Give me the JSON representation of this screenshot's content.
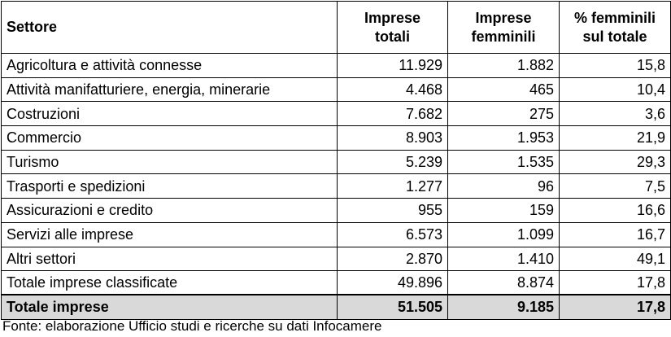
{
  "table": {
    "headers": {
      "sector": "Settore",
      "total": [
        "Imprese",
        "totali"
      ],
      "female": [
        "Imprese",
        "femminili"
      ],
      "percent": [
        "% femminili",
        "sul totale"
      ]
    },
    "rows": [
      {
        "sector": "Agricoltura e attività connesse",
        "total": "11.929",
        "female": "1.882",
        "percent": "15,8"
      },
      {
        "sector": "Attività manifatturiere, energia, minerarie",
        "total": "4.468",
        "female": "465",
        "percent": "10,4"
      },
      {
        "sector": "Costruzioni",
        "total": "7.682",
        "female": "275",
        "percent": "3,6"
      },
      {
        "sector": "Commercio",
        "total": "8.903",
        "female": "1.953",
        "percent": "21,9"
      },
      {
        "sector": "Turismo",
        "total": "5.239",
        "female": "1.535",
        "percent": "29,3"
      },
      {
        "sector": "Trasporti e spedizioni",
        "total": "1.277",
        "female": "96",
        "percent": "7,5"
      },
      {
        "sector": "Assicurazioni e credito",
        "total": "955",
        "female": "159",
        "percent": "16,6"
      },
      {
        "sector": "Servizi alle imprese",
        "total": "6.573",
        "female": "1.099",
        "percent": "16,7"
      },
      {
        "sector": "Altri settori",
        "total": "2.870",
        "female": "1.410",
        "percent": "49,1"
      },
      {
        "sector": "Totale imprese classificate",
        "total": "49.896",
        "female": "8.874",
        "percent": "17,8"
      }
    ],
    "total_row": {
      "sector": "Totale imprese",
      "total": "51.505",
      "female": "9.185",
      "percent": "17,8"
    },
    "total_row_background": "#d9d9d9"
  },
  "source": "Fonte: elaborazione Ufficio studi e ricerche su dati Infocamere"
}
